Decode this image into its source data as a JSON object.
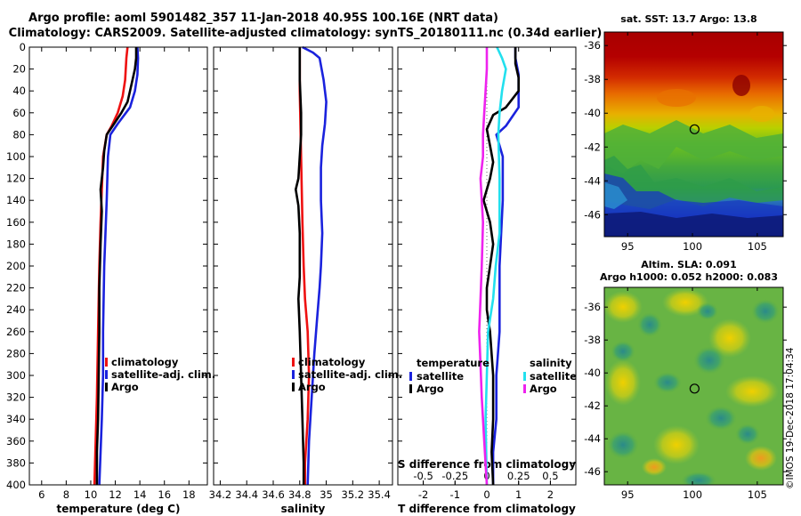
{
  "title": {
    "line1": "Argo profile: aoml 5901482_357 11-Jan-2018 40.95S 100.16E (NRT data)",
    "line2": "Climatology: CARS2009. Satellite-adjusted climatology: synTS_20180111.nc (0.34d earlier)"
  },
  "colors": {
    "climatology": "#ee1111",
    "satellite": "#1a22dd",
    "argo": "#000000",
    "sat_salinity": "#22e0ee",
    "argo_salinity": "#ee22ee"
  },
  "depth_ticks": [
    "0",
    "20",
    "40",
    "60",
    "80",
    "100",
    "120",
    "140",
    "160",
    "180",
    "200",
    "220",
    "240",
    "260",
    "280",
    "300",
    "320",
    "340",
    "360",
    "380",
    "400"
  ],
  "copyright": "©IMOS 19-Dec-2018 17:04:34",
  "chart_data": [
    {
      "type": "line",
      "id": "temperature",
      "xlabel": "temperature (deg C)",
      "ylabel": "depth",
      "xlim": [
        5,
        19.5
      ],
      "ylim": [
        400,
        0
      ],
      "xticks": [
        "6",
        "8",
        "10",
        "12",
        "14",
        "16",
        "18"
      ],
      "xtick_values": [
        6,
        8,
        10,
        12,
        14,
        16,
        18
      ],
      "legend": [
        "climatology",
        "satellite-adj. clim.",
        "Argo"
      ],
      "legend_position": "lower-right",
      "series": [
        {
          "name": "climatology",
          "color": "climatology",
          "points": [
            [
              13.0,
              0
            ],
            [
              12.9,
              10
            ],
            [
              12.8,
              30
            ],
            [
              12.6,
              45
            ],
            [
              12.2,
              60
            ],
            [
              11.7,
              72
            ],
            [
              11.3,
              80
            ],
            [
              11.0,
              100
            ],
            [
              10.9,
              130
            ],
            [
              10.8,
              160
            ],
            [
              10.7,
              200
            ],
            [
              10.6,
              260
            ],
            [
              10.5,
              320
            ],
            [
              10.4,
              360
            ],
            [
              10.3,
              400
            ]
          ]
        },
        {
          "name": "satellite-adj. clim.",
          "color": "satellite",
          "points": [
            [
              13.8,
              0
            ],
            [
              13.85,
              10
            ],
            [
              13.8,
              25
            ],
            [
              13.6,
              40
            ],
            [
              13.2,
              55
            ],
            [
              12.2,
              70
            ],
            [
              11.6,
              80
            ],
            [
              11.4,
              100
            ],
            [
              11.3,
              140
            ],
            [
              11.1,
              200
            ],
            [
              11.0,
              260
            ],
            [
              11.0,
              300
            ],
            [
              10.9,
              340
            ],
            [
              10.8,
              370
            ],
            [
              10.7,
              400
            ]
          ]
        },
        {
          "name": "Argo",
          "color": "argo",
          "points": [
            [
              13.7,
              0
            ],
            [
              13.7,
              10
            ],
            [
              13.6,
              20
            ],
            [
              13.3,
              35
            ],
            [
              13.0,
              50
            ],
            [
              12.5,
              60
            ],
            [
              11.9,
              70
            ],
            [
              11.3,
              80
            ],
            [
              11.1,
              95
            ],
            [
              11.0,
              110
            ],
            [
              10.8,
              130
            ],
            [
              10.9,
              150
            ],
            [
              10.8,
              180
            ],
            [
              10.7,
              220
            ],
            [
              10.7,
              260
            ],
            [
              10.65,
              300
            ],
            [
              10.6,
              340
            ],
            [
              10.5,
              370
            ],
            [
              10.5,
              400
            ]
          ]
        }
      ]
    },
    {
      "type": "line",
      "id": "salinity",
      "xlabel": "salinity",
      "ylabel": "depth",
      "xlim": [
        34.15,
        35.5
      ],
      "ylim": [
        400,
        0
      ],
      "xticks": [
        "34.2",
        "34.4",
        "34.6",
        "34.8",
        "35",
        "35.2",
        "35.4"
      ],
      "xtick_values": [
        34.2,
        34.4,
        34.6,
        34.8,
        35.0,
        35.2,
        35.4
      ],
      "legend": [
        "climatology",
        "satellite-adj. clim.",
        "Argo"
      ],
      "legend_position": "lower-right",
      "series": [
        {
          "name": "climatology",
          "color": "climatology",
          "points": [
            [
              34.8,
              0
            ],
            [
              34.8,
              40
            ],
            [
              34.81,
              100
            ],
            [
              34.82,
              160
            ],
            [
              34.83,
              200
            ],
            [
              34.84,
              230
            ],
            [
              34.86,
              260
            ],
            [
              34.87,
              300
            ],
            [
              34.86,
              340
            ],
            [
              34.84,
              380
            ],
            [
              34.84,
              400
            ]
          ]
        },
        {
          "name": "satellite-adj. clim.",
          "color": "satellite",
          "points": [
            [
              34.82,
              0
            ],
            [
              34.9,
              5
            ],
            [
              34.95,
              10
            ],
            [
              34.98,
              30
            ],
            [
              35.0,
              50
            ],
            [
              34.99,
              70
            ],
            [
              34.97,
              90
            ],
            [
              34.96,
              110
            ],
            [
              34.96,
              140
            ],
            [
              34.97,
              170
            ],
            [
              34.96,
              200
            ],
            [
              34.95,
              220
            ],
            [
              34.93,
              250
            ],
            [
              34.91,
              280
            ],
            [
              34.89,
              320
            ],
            [
              34.87,
              360
            ],
            [
              34.86,
              400
            ]
          ]
        },
        {
          "name": "Argo",
          "color": "argo",
          "points": [
            [
              34.8,
              0
            ],
            [
              34.8,
              30
            ],
            [
              34.81,
              60
            ],
            [
              34.81,
              80
            ],
            [
              34.8,
              100
            ],
            [
              34.79,
              120
            ],
            [
              34.77,
              130
            ],
            [
              34.79,
              145
            ],
            [
              34.8,
              170
            ],
            [
              34.8,
              210
            ],
            [
              34.79,
              230
            ],
            [
              34.8,
              260
            ],
            [
              34.81,
              300
            ],
            [
              34.82,
              340
            ],
            [
              34.83,
              380
            ],
            [
              34.83,
              400
            ]
          ]
        }
      ]
    },
    {
      "type": "line",
      "id": "difference",
      "xlabel": "T difference from climatology",
      "xlabel_top": "S difference from climatology",
      "ylabel": "depth",
      "xlim": [
        -2.8,
        2.8
      ],
      "ylim": [
        400,
        0
      ],
      "xticks": [
        "-2",
        "-1",
        "0",
        "1",
        "2"
      ],
      "xtick_values": [
        -2,
        -1,
        0,
        1,
        2
      ],
      "sticks": [
        "-0.5",
        "-0.25",
        "0",
        "0.25",
        "0.5"
      ],
      "stick_values": [
        -0.5,
        -0.25,
        0,
        0.25,
        0.5
      ],
      "s_scale": 4,
      "legend_temperature_title": "temperature",
      "legend_salinity_title": "salinity",
      "legend_temperature": [
        "satellite",
        "Argo"
      ],
      "legend_salinity": [
        "satellite",
        "Argo"
      ],
      "series": [
        {
          "name": "T satellite",
          "color": "satellite",
          "points": [
            [
              0.9,
              0
            ],
            [
              0.9,
              10
            ],
            [
              1.0,
              25
            ],
            [
              1.0,
              40
            ],
            [
              1.0,
              55
            ],
            [
              0.6,
              72
            ],
            [
              0.3,
              80
            ],
            [
              0.5,
              100
            ],
            [
              0.5,
              140
            ],
            [
              0.4,
              200
            ],
            [
              0.4,
              260
            ],
            [
              0.3,
              300
            ],
            [
              0.3,
              340
            ],
            [
              0.2,
              370
            ],
            [
              0.2,
              400
            ]
          ]
        },
        {
          "name": "T Argo",
          "color": "argo",
          "points": [
            [
              0.9,
              0
            ],
            [
              0.9,
              15
            ],
            [
              1.0,
              28
            ],
            [
              1.0,
              40
            ],
            [
              0.6,
              55
            ],
            [
              0.2,
              62
            ],
            [
              0.0,
              75
            ],
            [
              0.1,
              90
            ],
            [
              0.2,
              105
            ],
            [
              0.1,
              120
            ],
            [
              -0.1,
              140
            ],
            [
              0.1,
              160
            ],
            [
              0.2,
              180
            ],
            [
              0.1,
              200
            ],
            [
              0.0,
              220
            ],
            [
              0.0,
              240
            ],
            [
              0.1,
              260
            ],
            [
              0.2,
              300
            ],
            [
              0.2,
              340
            ],
            [
              0.15,
              370
            ],
            [
              0.2,
              400
            ]
          ]
        },
        {
          "name": "S satellite",
          "color": "sat_salinity",
          "points": [
            [
              0.08,
              0
            ],
            [
              0.12,
              10
            ],
            [
              0.15,
              20
            ],
            [
              0.12,
              40
            ],
            [
              0.1,
              60
            ],
            [
              0.09,
              80
            ],
            [
              0.1,
              120
            ],
            [
              0.1,
              170
            ],
            [
              0.07,
              200
            ],
            [
              0.05,
              230
            ],
            [
              0.01,
              260
            ],
            [
              0.0,
              300
            ],
            [
              -0.01,
              340
            ],
            [
              0.0,
              400
            ]
          ]
        },
        {
          "name": "S Argo",
          "color": "argo_salinity",
          "points": [
            [
              0.0,
              0
            ],
            [
              0.0,
              20
            ],
            [
              -0.01,
              40
            ],
            [
              -0.02,
              60
            ],
            [
              -0.03,
              80
            ],
            [
              -0.03,
              100
            ],
            [
              -0.05,
              120
            ],
            [
              -0.04,
              140
            ],
            [
              -0.03,
              160
            ],
            [
              -0.04,
              200
            ],
            [
              -0.05,
              230
            ],
            [
              -0.06,
              260
            ],
            [
              -0.05,
              290
            ],
            [
              -0.04,
              320
            ],
            [
              -0.02,
              360
            ],
            [
              0.0,
              400
            ]
          ]
        }
      ]
    },
    {
      "type": "heatmap",
      "id": "sst_map",
      "title": "sat. SST: 13.7 Argo: 13.8",
      "xticks": [
        "95",
        "100",
        "105"
      ],
      "xtick_values": [
        95,
        100,
        105
      ],
      "yticks": [
        "-36",
        "-38",
        "-40",
        "-42",
        "-44",
        "-46"
      ],
      "ytick_values": [
        -36,
        -38,
        -40,
        -42,
        -44,
        -46
      ],
      "xlim": [
        93.2,
        107
      ],
      "ylim": [
        -47.3,
        -35.2
      ],
      "marker": [
        100.16,
        -40.95
      ]
    },
    {
      "type": "heatmap",
      "id": "sla_map",
      "title": "Altim. SLA: 0.091",
      "subtitle": "Argo h1000: 0.052 h2000: 0.083",
      "xticks": [
        "95",
        "100",
        "105"
      ],
      "xtick_values": [
        95,
        100,
        105
      ],
      "yticks": [
        "-36",
        "-38",
        "-40",
        "-42",
        "-44",
        "-46"
      ],
      "ytick_values": [
        -36,
        -38,
        -40,
        -42,
        -44,
        -46
      ],
      "xlim": [
        93.2,
        107
      ],
      "ylim": [
        -46.8,
        -34.8
      ],
      "marker": [
        100.16,
        -40.95
      ]
    }
  ]
}
